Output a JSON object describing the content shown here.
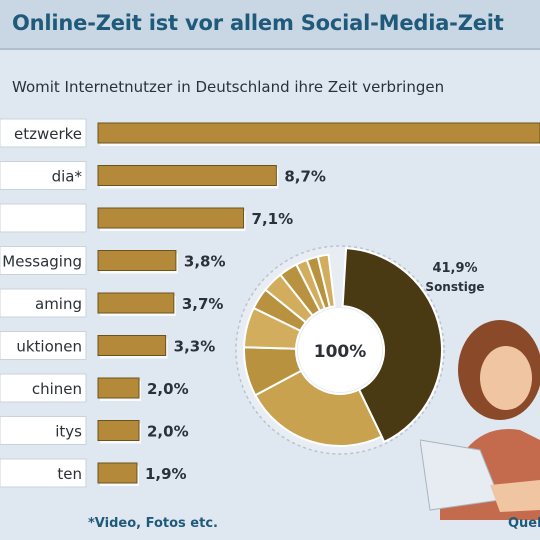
{
  "header": {
    "title": "Online-Zeit ist vor allem Social-Media-Zeit",
    "subtitle": "Womit Internetnutzer in Deutschland ihre Zeit verbringen"
  },
  "footer": {
    "footnote": "*Video, Fotos etc.",
    "source": "Quel"
  },
  "colors": {
    "bar": "#b48a3a",
    "bar_dark": "#6b531c",
    "donut_main": "#4a3a14",
    "donut_light": "#c9a24f",
    "accent_text": "#1f5a7a",
    "background": "#dfe8f0"
  },
  "chart_data": [
    {
      "type": "bar",
      "orientation": "horizontal",
      "categories": [
        "etzwerke",
        "dia*",
        "",
        "Messaging",
        "aming",
        "uktionen",
        "chinen",
        "itys",
        "ten"
      ],
      "values": [
        null,
        8.7,
        7.1,
        3.8,
        3.7,
        3.3,
        2.0,
        2.0,
        1.9
      ],
      "value_labels": [
        "",
        "8,7%",
        "7,1%",
        "3,8%",
        "3,7%",
        "3,3%",
        "2,0%",
        "2,0%",
        "1,9%"
      ],
      "unit": "%"
    },
    {
      "type": "pie",
      "donut": true,
      "center_label": "100%",
      "slices": [
        {
          "name": "Sonstige",
          "value": 41.9,
          "label": "41,9%"
        }
      ],
      "remaining_value": 58.1
    }
  ],
  "illustration": {
    "icon": "girl-with-laptop-photo"
  }
}
